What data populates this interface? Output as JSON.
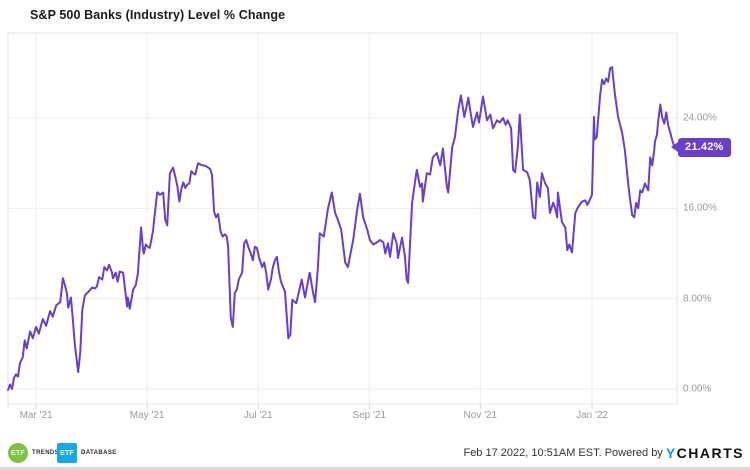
{
  "header": {
    "title": "S&P 500 Banks (Industry) Level % Change"
  },
  "badge": {
    "label": "21.42%"
  },
  "footer": {
    "etf_trends": {
      "abbr": "ETF",
      "label": "TRENDS"
    },
    "etf_database": {
      "abbr": "ETF",
      "label": "DATABASE"
    },
    "timestamp": "Feb 17 2022, 10:51AM EST. Powered by",
    "ycharts_y": "Y",
    "ycharts_rest": "CHARTS"
  },
  "colors": {
    "line": "#6a3fc6",
    "badge": "#6a3fc6",
    "grid": "#ededed",
    "border": "#e4e4e4",
    "tick": "#d8d8d8",
    "axis_text": "#9a9a9a",
    "trends_green": "#7dc242",
    "db_blue": "#15aae1",
    "ycharts_blue": "#1496e8"
  },
  "chart_data": {
    "type": "line",
    "title": "S&P 500 Banks (Industry) Level % Change",
    "series_name": "S&P 500 Banks (Industry) Level % Change",
    "unit": "percent change since Feb 17 2021",
    "grid": true,
    "legend": "none",
    "last_value": 21.42,
    "ylim": [
      -1.5,
      31.5
    ],
    "y_ticks": [
      {
        "label": "0.00%",
        "value": 0
      },
      {
        "label": "8.00%",
        "value": 8
      },
      {
        "label": "16.00%",
        "value": 16
      },
      {
        "label": "24.00%",
        "value": 24
      }
    ],
    "x_ticks": [
      {
        "label": "Mar '21",
        "f": 0.042
      },
      {
        "label": "May '21",
        "f": 0.208
      },
      {
        "label": "Jul '21",
        "f": 0.374
      },
      {
        "label": "Sep '21",
        "f": 0.54
      },
      {
        "label": "Nov '21",
        "f": 0.706
      },
      {
        "label": "Jan '22",
        "f": 0.873
      }
    ],
    "points": [
      [
        0.0,
        -0.1
      ],
      [
        0.003,
        0.4
      ],
      [
        0.006,
        0.0
      ],
      [
        0.009,
        1.0
      ],
      [
        0.012,
        1.3
      ],
      [
        0.015,
        1.1
      ],
      [
        0.018,
        2.3
      ],
      [
        0.022,
        2.8
      ],
      [
        0.025,
        4.3
      ],
      [
        0.028,
        3.6
      ],
      [
        0.033,
        5.1
      ],
      [
        0.037,
        4.5
      ],
      [
        0.042,
        5.5
      ],
      [
        0.046,
        4.9
      ],
      [
        0.052,
        6.2
      ],
      [
        0.057,
        5.6
      ],
      [
        0.063,
        6.9
      ],
      [
        0.067,
        6.4
      ],
      [
        0.072,
        7.4
      ],
      [
        0.078,
        7.7
      ],
      [
        0.082,
        9.8
      ],
      [
        0.085,
        9.2
      ],
      [
        0.088,
        8.5
      ],
      [
        0.09,
        7.2
      ],
      [
        0.094,
        8.1
      ],
      [
        0.097,
        6.1
      ],
      [
        0.1,
        3.9
      ],
      [
        0.105,
        1.5
      ],
      [
        0.108,
        3.3
      ],
      [
        0.111,
        7.0
      ],
      [
        0.115,
        8.3
      ],
      [
        0.12,
        8.6
      ],
      [
        0.126,
        9.0
      ],
      [
        0.13,
        8.9
      ],
      [
        0.133,
        9.1
      ],
      [
        0.136,
        9.9
      ],
      [
        0.141,
        9.7
      ],
      [
        0.144,
        10.8
      ],
      [
        0.148,
        10.5
      ],
      [
        0.151,
        11.0
      ],
      [
        0.155,
        10.4
      ],
      [
        0.157,
        9.8
      ],
      [
        0.161,
        10.3
      ],
      [
        0.164,
        9.5
      ],
      [
        0.167,
        10.4
      ],
      [
        0.172,
        10.3
      ],
      [
        0.178,
        7.3
      ],
      [
        0.179,
        8.1
      ],
      [
        0.182,
        7.1
      ],
      [
        0.187,
        8.8
      ],
      [
        0.191,
        9.2
      ],
      [
        0.194,
        10.2
      ],
      [
        0.199,
        14.3
      ],
      [
        0.202,
        12.3
      ],
      [
        0.203,
        12.0
      ],
      [
        0.206,
        12.8
      ],
      [
        0.209,
        12.6
      ],
      [
        0.212,
        12.5
      ],
      [
        0.217,
        14.1
      ],
      [
        0.218,
        14.7
      ],
      [
        0.223,
        17.4
      ],
      [
        0.224,
        17.4
      ],
      [
        0.227,
        17.2
      ],
      [
        0.232,
        17.4
      ],
      [
        0.235,
        15.0
      ],
      [
        0.238,
        14.5
      ],
      [
        0.242,
        19.1
      ],
      [
        0.247,
        19.6
      ],
      [
        0.25,
        18.8
      ],
      [
        0.253,
        18.0
      ],
      [
        0.256,
        16.6
      ],
      [
        0.259,
        17.7
      ],
      [
        0.262,
        18.3
      ],
      [
        0.265,
        17.8
      ],
      [
        0.268,
        18.1
      ],
      [
        0.271,
        18.2
      ],
      [
        0.274,
        19.3
      ],
      [
        0.277,
        19.1
      ],
      [
        0.28,
        19.0
      ],
      [
        0.284,
        20.0
      ],
      [
        0.287,
        19.9
      ],
      [
        0.291,
        19.8
      ],
      [
        0.293,
        19.8
      ],
      [
        0.297,
        19.7
      ],
      [
        0.302,
        19.5
      ],
      [
        0.305,
        19.0
      ],
      [
        0.308,
        15.7
      ],
      [
        0.311,
        15.2
      ],
      [
        0.314,
        15.5
      ],
      [
        0.318,
        13.9
      ],
      [
        0.321,
        13.5
      ],
      [
        0.324,
        13.7
      ],
      [
        0.327,
        13.5
      ],
      [
        0.329,
        12.6
      ],
      [
        0.333,
        6.3
      ],
      [
        0.336,
        5.5
      ],
      [
        0.339,
        8.5
      ],
      [
        0.342,
        8.8
      ],
      [
        0.345,
        9.7
      ],
      [
        0.35,
        10.3
      ],
      [
        0.353,
        12.9
      ],
      [
        0.356,
        13.2
      ],
      [
        0.359,
        12.6
      ],
      [
        0.363,
        12.0
      ],
      [
        0.366,
        11.4
      ],
      [
        0.369,
        12.6
      ],
      [
        0.372,
        12.5
      ],
      [
        0.375,
        11.7
      ],
      [
        0.38,
        10.8
      ],
      [
        0.383,
        11.2
      ],
      [
        0.386,
        10.3
      ],
      [
        0.389,
        8.8
      ],
      [
        0.393,
        9.7
      ],
      [
        0.396,
        10.8
      ],
      [
        0.399,
        11.4
      ],
      [
        0.402,
        11.7
      ],
      [
        0.405,
        10.4
      ],
      [
        0.408,
        9.5
      ],
      [
        0.414,
        8.6
      ],
      [
        0.419,
        4.5
      ],
      [
        0.422,
        4.8
      ],
      [
        0.425,
        7.9
      ],
      [
        0.431,
        7.6
      ],
      [
        0.439,
        9.7
      ],
      [
        0.444,
        8.1
      ],
      [
        0.451,
        10.3
      ],
      [
        0.456,
        8.5
      ],
      [
        0.459,
        7.7
      ],
      [
        0.463,
        10.5
      ],
      [
        0.466,
        13.8
      ],
      [
        0.472,
        13.5
      ],
      [
        0.478,
        15.9
      ],
      [
        0.484,
        17.4
      ],
      [
        0.489,
        15.6
      ],
      [
        0.493,
        15.0
      ],
      [
        0.498,
        14.1
      ],
      [
        0.504,
        11.2
      ],
      [
        0.508,
        10.8
      ],
      [
        0.516,
        13.2
      ],
      [
        0.522,
        15.9
      ],
      [
        0.526,
        17.3
      ],
      [
        0.531,
        15.2
      ],
      [
        0.537,
        14.1
      ],
      [
        0.541,
        13.2
      ],
      [
        0.546,
        12.8
      ],
      [
        0.552,
        13.0
      ],
      [
        0.556,
        13.2
      ],
      [
        0.561,
        13.0
      ],
      [
        0.564,
        12.0
      ],
      [
        0.568,
        12.9
      ],
      [
        0.571,
        11.7
      ],
      [
        0.576,
        13.8
      ],
      [
        0.578,
        13.4
      ],
      [
        0.581,
        12.9
      ],
      [
        0.583,
        11.6
      ],
      [
        0.589,
        13.4
      ],
      [
        0.593,
        11.9
      ],
      [
        0.596,
        9.7
      ],
      [
        0.598,
        9.4
      ],
      [
        0.604,
        16.5
      ],
      [
        0.608,
        18.2
      ],
      [
        0.611,
        19.4
      ],
      [
        0.616,
        17.9
      ],
      [
        0.619,
        18.2
      ],
      [
        0.62,
        16.6
      ],
      [
        0.626,
        19.1
      ],
      [
        0.631,
        19.0
      ],
      [
        0.635,
        20.5
      ],
      [
        0.641,
        20.9
      ],
      [
        0.646,
        19.8
      ],
      [
        0.65,
        21.3
      ],
      [
        0.656,
        17.9
      ],
      [
        0.658,
        17.4
      ],
      [
        0.664,
        21.4
      ],
      [
        0.668,
        22.3
      ],
      [
        0.673,
        24.7
      ],
      [
        0.677,
        26.0
      ],
      [
        0.682,
        24.1
      ],
      [
        0.685,
        24.9
      ],
      [
        0.688,
        25.8
      ],
      [
        0.692,
        24.3
      ],
      [
        0.695,
        23.2
      ],
      [
        0.701,
        24.5
      ],
      [
        0.704,
        23.6
      ],
      [
        0.71,
        25.9
      ],
      [
        0.716,
        23.8
      ],
      [
        0.721,
        24.3
      ],
      [
        0.725,
        23.1
      ],
      [
        0.731,
        23.8
      ],
      [
        0.735,
        23.6
      ],
      [
        0.74,
        24.0
      ],
      [
        0.744,
        23.4
      ],
      [
        0.747,
        23.8
      ],
      [
        0.752,
        23.1
      ],
      [
        0.755,
        19.4
      ],
      [
        0.758,
        19.2
      ],
      [
        0.762,
        21.4
      ],
      [
        0.765,
        24.3
      ],
      [
        0.77,
        19.4
      ],
      [
        0.776,
        19.2
      ],
      [
        0.78,
        18.5
      ],
      [
        0.785,
        15.2
      ],
      [
        0.788,
        15.1
      ],
      [
        0.791,
        18.3
      ],
      [
        0.795,
        17.0
      ],
      [
        0.798,
        19.1
      ],
      [
        0.803,
        18.2
      ],
      [
        0.807,
        17.8
      ],
      [
        0.81,
        15.6
      ],
      [
        0.815,
        16.5
      ],
      [
        0.818,
        16.0
      ],
      [
        0.821,
        15.2
      ],
      [
        0.822,
        17.4
      ],
      [
        0.828,
        14.8
      ],
      [
        0.833,
        14.3
      ],
      [
        0.836,
        12.3
      ],
      [
        0.839,
        12.8
      ],
      [
        0.843,
        12.1
      ],
      [
        0.848,
        15.6
      ],
      [
        0.852,
        16.1
      ],
      [
        0.858,
        16.6
      ],
      [
        0.863,
        16.7
      ],
      [
        0.866,
        16.3
      ],
      [
        0.87,
        16.8
      ],
      [
        0.873,
        17.2
      ],
      [
        0.876,
        24.1
      ],
      [
        0.877,
        22.1
      ],
      [
        0.88,
        22.3
      ],
      [
        0.885,
        26.0
      ],
      [
        0.888,
        27.4
      ],
      [
        0.891,
        27.0
      ],
      [
        0.894,
        27.5
      ],
      [
        0.897,
        27.2
      ],
      [
        0.9,
        28.4
      ],
      [
        0.903,
        28.5
      ],
      [
        0.907,
        26.2
      ],
      [
        0.912,
        24.1
      ],
      [
        0.918,
        22.7
      ],
      [
        0.922,
        21.2
      ],
      [
        0.927,
        18.2
      ],
      [
        0.93,
        16.7
      ],
      [
        0.933,
        15.4
      ],
      [
        0.936,
        15.2
      ],
      [
        0.939,
        16.5
      ],
      [
        0.942,
        16.0
      ],
      [
        0.945,
        17.6
      ],
      [
        0.948,
        17.4
      ],
      [
        0.952,
        18.2
      ],
      [
        0.957,
        17.6
      ],
      [
        0.96,
        20.5
      ],
      [
        0.963,
        19.8
      ],
      [
        0.966,
        21.2
      ],
      [
        0.967,
        21.9
      ],
      [
        0.97,
        22.5
      ],
      [
        0.972,
        23.8
      ],
      [
        0.975,
        25.2
      ],
      [
        0.978,
        24.0
      ],
      [
        0.981,
        23.5
      ],
      [
        0.984,
        24.5
      ],
      [
        0.987,
        23.3
      ],
      [
        0.99,
        22.7
      ],
      [
        0.993,
        22.0
      ],
      [
        0.996,
        21.42
      ]
    ]
  }
}
